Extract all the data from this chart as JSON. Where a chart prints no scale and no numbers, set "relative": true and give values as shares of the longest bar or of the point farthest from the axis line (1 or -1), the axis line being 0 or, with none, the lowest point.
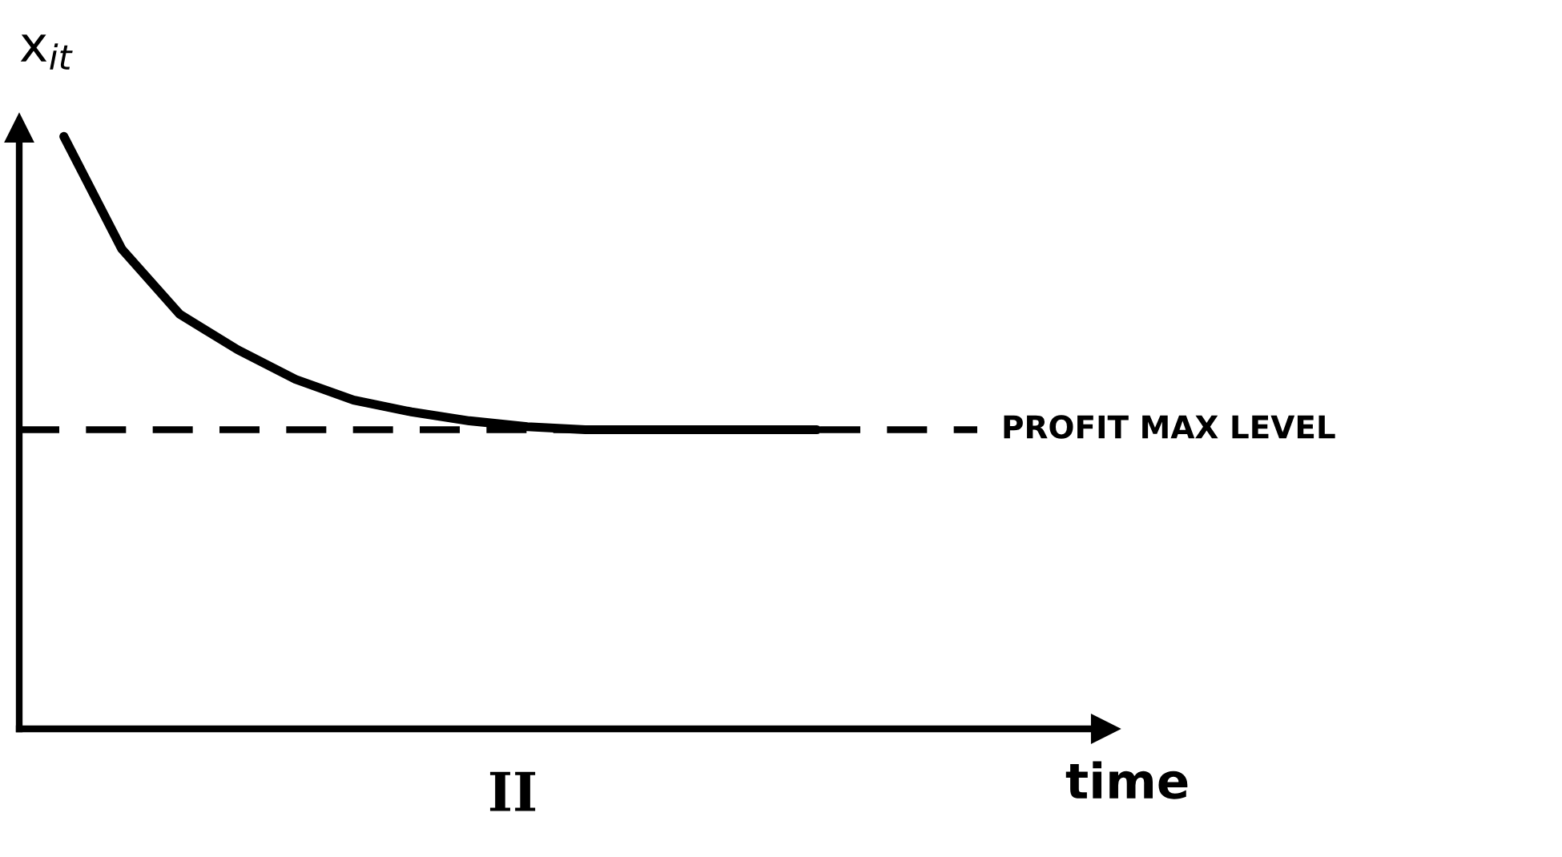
{
  "chart_data": {
    "type": "line",
    "relative": true,
    "ylabel": "x$_{it}$",
    "xlabel": "time",
    "categories": [
      null,
      null,
      null,
      null,
      null,
      null,
      null,
      null,
      null,
      null,
      null,
      null,
      null,
      null
    ],
    "series": [
      {
        "color": "#000000",
        "values": [
          1.0,
          0.81,
          0.7,
          0.64,
          0.59,
          0.555,
          0.535,
          0.52,
          0.51,
          0.505,
          0.505,
          0.505,
          0.505,
          0.505
        ]
      }
    ],
    "ref_lines": [
      {
        "axis": "y",
        "value": 0.505,
        "label": "PROFIT MAX LEVEL",
        "color": "#000000",
        "line_style": "dashed"
      }
    ],
    "annotations": [
      "II"
    ],
    "legend": false,
    "marker": "none",
    "line_style": "solid"
  }
}
